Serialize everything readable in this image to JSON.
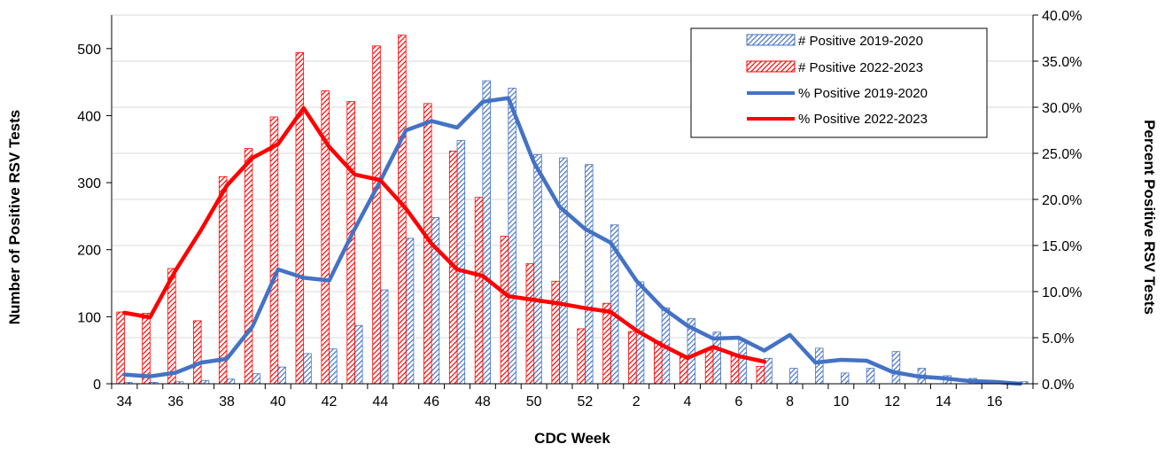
{
  "chart_data": {
    "type": "bar",
    "categories": [
      "34",
      "35",
      "36",
      "37",
      "38",
      "39",
      "40",
      "41",
      "42",
      "43",
      "44",
      "45",
      "46",
      "47",
      "48",
      "49",
      "50",
      "51",
      "52",
      "1",
      "2",
      "3",
      "4",
      "5",
      "6",
      "7",
      "8",
      "9",
      "10",
      "11",
      "12",
      "13",
      "14",
      "15",
      "16",
      "17"
    ],
    "x_tick_labels": [
      "34",
      "36",
      "38",
      "40",
      "42",
      "44",
      "46",
      "48",
      "50",
      "52",
      "2",
      "4",
      "6",
      "8",
      "10",
      "12",
      "14",
      "16"
    ],
    "xlabel": "CDC Week",
    "ylabel_left": "Number of Positive RSV Tests",
    "ylabel_right": "Percent Positive RSV Tests",
    "ylim_left": [
      0,
      550
    ],
    "ylim_right": [
      0,
      40
    ],
    "y_ticks_left": [
      "0",
      "100",
      "200",
      "300",
      "400",
      "500"
    ],
    "y_ticks_right": [
      "0.0%",
      "5.0%",
      "10.0%",
      "15.0%",
      "20.0%",
      "25.0%",
      "30.0%",
      "35.0%",
      "40.0%"
    ],
    "grid": true,
    "legend_position": "top-right",
    "series": [
      {
        "name": "# Positive 2019-2020",
        "kind": "bar",
        "axis": "left",
        "color": "#4472C4",
        "values": [
          2,
          2,
          3,
          5,
          7,
          15,
          25,
          45,
          52,
          87,
          140,
          217,
          248,
          363,
          452,
          441,
          342,
          337,
          327,
          237,
          152,
          113,
          97,
          77,
          65,
          38,
          23,
          53,
          16,
          23,
          48,
          23,
          12,
          8,
          4,
          3
        ]
      },
      {
        "name": "# Positive 2022-2023",
        "kind": "bar",
        "axis": "left",
        "color": "#FF0000",
        "values": [
          107,
          105,
          172,
          94,
          309,
          351,
          398,
          494,
          437,
          421,
          504,
          520,
          418,
          347,
          278,
          220,
          179,
          153,
          82,
          120,
          78,
          63,
          40,
          50,
          42,
          26,
          null,
          null,
          null,
          null,
          null,
          null,
          null,
          null,
          null,
          null
        ]
      },
      {
        "name": "% Positive 2019-2020",
        "kind": "line",
        "axis": "right",
        "color": "#4472C4",
        "values": [
          1.0,
          0.8,
          1.2,
          2.3,
          2.7,
          6.2,
          12.4,
          11.5,
          11.2,
          16.8,
          22.0,
          27.5,
          28.5,
          27.8,
          30.6,
          31.0,
          24.0,
          19.2,
          16.8,
          15.3,
          11.2,
          8.3,
          6.3,
          4.9,
          5.0,
          3.6,
          5.3,
          2.3,
          2.6,
          2.5,
          1.3,
          0.8,
          0.6,
          0.3,
          0.2,
          0.0
        ]
      },
      {
        "name": "% Positive 2022-2023",
        "kind": "line",
        "axis": "right",
        "color": "#FF0000",
        "values": [
          7.7,
          7.2,
          12.3,
          16.7,
          21.5,
          24.5,
          26.0,
          29.9,
          25.7,
          22.7,
          22.1,
          19.0,
          15.2,
          12.4,
          11.7,
          9.5,
          9.1,
          8.7,
          8.2,
          7.8,
          5.8,
          4.2,
          2.8,
          4.0,
          3.0,
          2.4,
          null,
          null,
          null,
          null,
          null,
          null,
          null,
          null,
          null,
          null
        ]
      }
    ]
  }
}
